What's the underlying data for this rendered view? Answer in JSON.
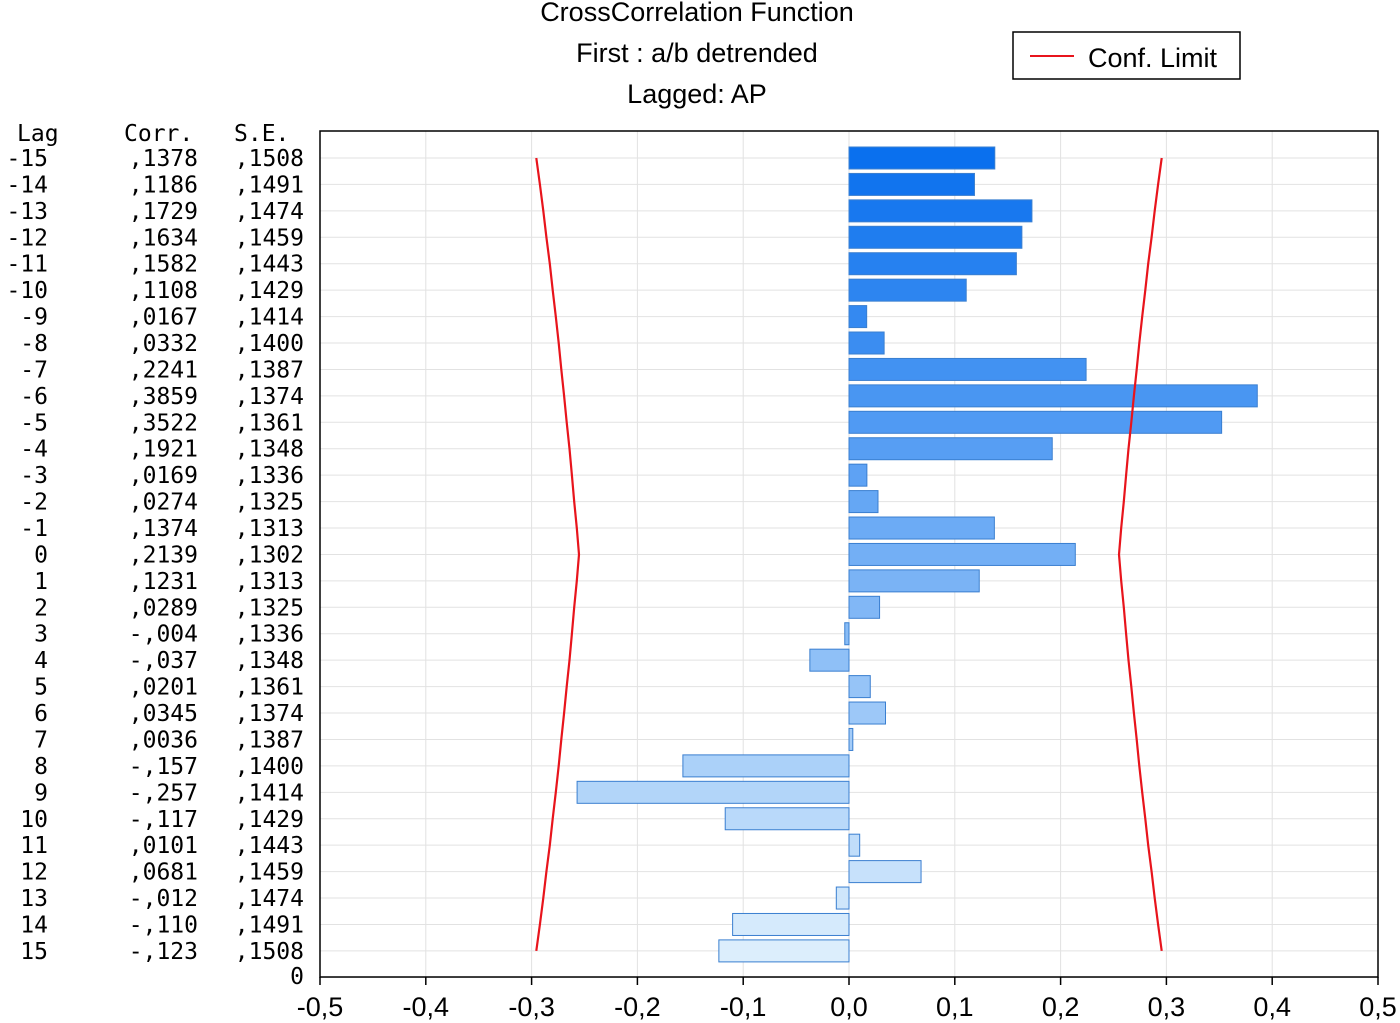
{
  "chart_data": {
    "type": "bar",
    "orientation": "horizontal",
    "title": [
      "CrossCorrelation Function",
      "First : a/b detrended",
      "Lagged: AP"
    ],
    "table_headers": {
      "lag": "Lag",
      "corr": "Corr.",
      "se": "S.E."
    },
    "rows": [
      {
        "lag": "-15",
        "corr_label": ",1378",
        "se_label": ",1508",
        "value": 0.1378,
        "conf": 0.2956
      },
      {
        "lag": "-14",
        "corr_label": ",1186",
        "se_label": ",1491",
        "value": 0.1186,
        "conf": 0.2922
      },
      {
        "lag": "-13",
        "corr_label": ",1729",
        "se_label": ",1474",
        "value": 0.1729,
        "conf": 0.2889
      },
      {
        "lag": "-12",
        "corr_label": ",1634",
        "se_label": ",1459",
        "value": 0.1634,
        "conf": 0.286
      },
      {
        "lag": "-11",
        "corr_label": ",1582",
        "se_label": ",1443",
        "value": 0.1582,
        "conf": 0.2828
      },
      {
        "lag": "-10",
        "corr_label": ",1108",
        "se_label": ",1429",
        "value": 0.1108,
        "conf": 0.2801
      },
      {
        "lag": "-9",
        "corr_label": ",0167",
        "se_label": ",1414",
        "value": 0.0167,
        "conf": 0.2771
      },
      {
        "lag": "-8",
        "corr_label": ",0332",
        "se_label": ",1400",
        "value": 0.0332,
        "conf": 0.2744
      },
      {
        "lag": "-7",
        "corr_label": ",2241",
        "se_label": ",1387",
        "value": 0.2241,
        "conf": 0.2719
      },
      {
        "lag": "-6",
        "corr_label": ",3859",
        "se_label": ",1374",
        "value": 0.3859,
        "conf": 0.2693
      },
      {
        "lag": "-5",
        "corr_label": ",3522",
        "se_label": ",1361",
        "value": 0.3522,
        "conf": 0.2668
      },
      {
        "lag": "-4",
        "corr_label": ",1921",
        "se_label": ",1348",
        "value": 0.1921,
        "conf": 0.2642
      },
      {
        "lag": "-3",
        "corr_label": ",0169",
        "se_label": ",1336",
        "value": 0.0169,
        "conf": 0.2619
      },
      {
        "lag": "-2",
        "corr_label": ",0274",
        "se_label": ",1325",
        "value": 0.0274,
        "conf": 0.2597
      },
      {
        "lag": "-1",
        "corr_label": ",1374",
        "se_label": ",1313",
        "value": 0.1374,
        "conf": 0.2573
      },
      {
        "lag": "0",
        "corr_label": ",2139",
        "se_label": ",1302",
        "value": 0.2139,
        "conf": 0.2552
      },
      {
        "lag": "1",
        "corr_label": ",1231",
        "se_label": ",1313",
        "value": 0.1231,
        "conf": 0.2573
      },
      {
        "lag": "2",
        "corr_label": ",0289",
        "se_label": ",1325",
        "value": 0.0289,
        "conf": 0.2597
      },
      {
        "lag": "3",
        "corr_label": "-,004",
        "se_label": ",1336",
        "value": -0.004,
        "conf": 0.2619
      },
      {
        "lag": "4",
        "corr_label": "-,037",
        "se_label": ",1348",
        "value": -0.037,
        "conf": 0.2642
      },
      {
        "lag": "5",
        "corr_label": ",0201",
        "se_label": ",1361",
        "value": 0.0201,
        "conf": 0.2668
      },
      {
        "lag": "6",
        "corr_label": ",0345",
        "se_label": ",1374",
        "value": 0.0345,
        "conf": 0.2693
      },
      {
        "lag": "7",
        "corr_label": ",0036",
        "se_label": ",1387",
        "value": 0.0036,
        "conf": 0.2719
      },
      {
        "lag": "8",
        "corr_label": "-,157",
        "se_label": ",1400",
        "value": -0.157,
        "conf": 0.2744
      },
      {
        "lag": "9",
        "corr_label": "-,257",
        "se_label": ",1414",
        "value": -0.257,
        "conf": 0.2771
      },
      {
        "lag": "10",
        "corr_label": "-,117",
        "se_label": ",1429",
        "value": -0.117,
        "conf": 0.2801
      },
      {
        "lag": "11",
        "corr_label": ",0101",
        "se_label": ",1443",
        "value": 0.0101,
        "conf": 0.2828
      },
      {
        "lag": "12",
        "corr_label": ",0681",
        "se_label": ",1459",
        "value": 0.0681,
        "conf": 0.286
      },
      {
        "lag": "13",
        "corr_label": "-,012",
        "se_label": ",1474",
        "value": -0.012,
        "conf": 0.2889
      },
      {
        "lag": "14",
        "corr_label": "-,110",
        "se_label": ",1491",
        "value": -0.11,
        "conf": 0.2922
      },
      {
        "lag": "15",
        "corr_label": "-,123",
        "se_label": ",1508",
        "value": -0.123,
        "conf": 0.2956
      }
    ],
    "extra_row_label": "0",
    "x_ticks": [
      "-0,5",
      "-0,4",
      "-0,3",
      "-0,2",
      "-0,1",
      "0,0",
      "0,1",
      "0,2",
      "0,3",
      "0,4",
      "0,5"
    ],
    "xlim": [
      -0.5,
      0.5
    ],
    "legend": {
      "label": "Conf. Limit",
      "position": "top-right"
    },
    "grid": true,
    "colors": {
      "bar_top": "#0a70ee",
      "bar_bottom": "#dceefc",
      "bar_stroke": "#3a7fd0",
      "conf_line": "#e8141c",
      "grid": "#e2e2e2",
      "axis": "#000000"
    }
  }
}
